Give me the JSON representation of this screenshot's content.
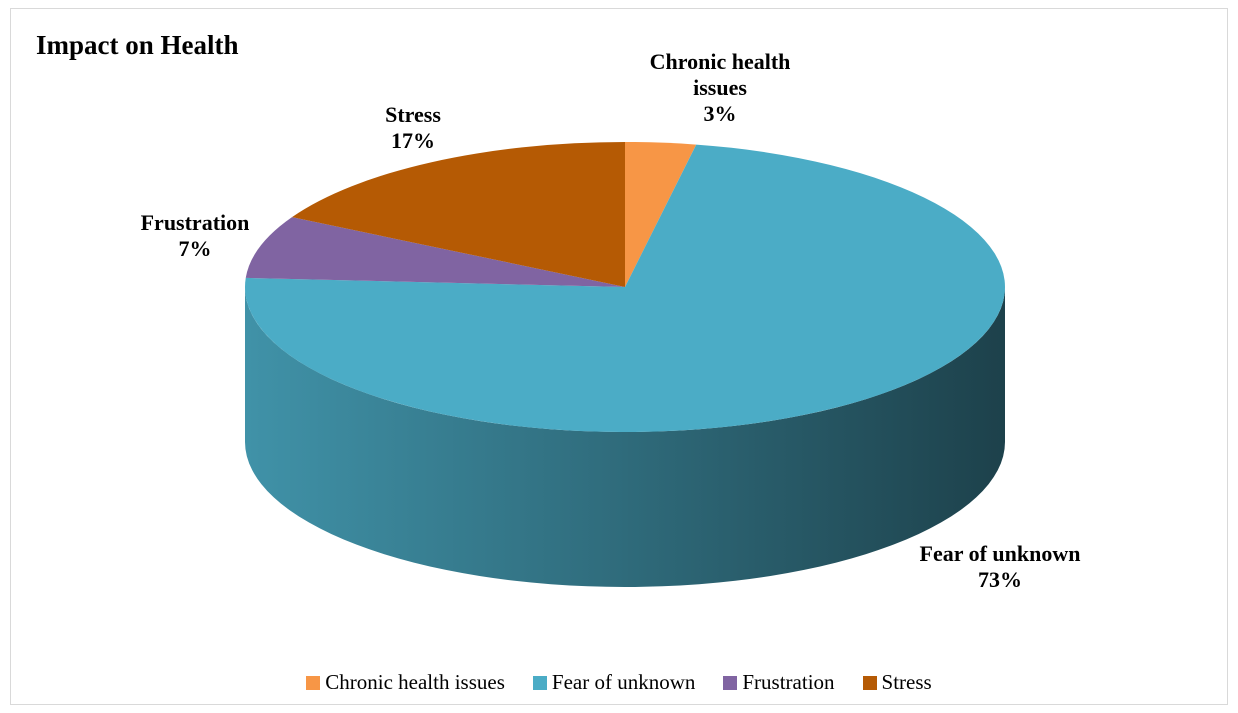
{
  "chart_data": {
    "type": "pie",
    "title": "Impact on Health",
    "categories": [
      "Chronic health issues",
      "Fear of unknown",
      "Frustration",
      "Stress"
    ],
    "values": [
      3,
      73,
      7,
      17
    ],
    "value_labels": [
      "3%",
      "73%",
      "7%",
      "17%"
    ],
    "colors": [
      "#f79646",
      "#4bacc6",
      "#8064a2",
      "#b55a04"
    ],
    "legend": "bottom"
  }
}
